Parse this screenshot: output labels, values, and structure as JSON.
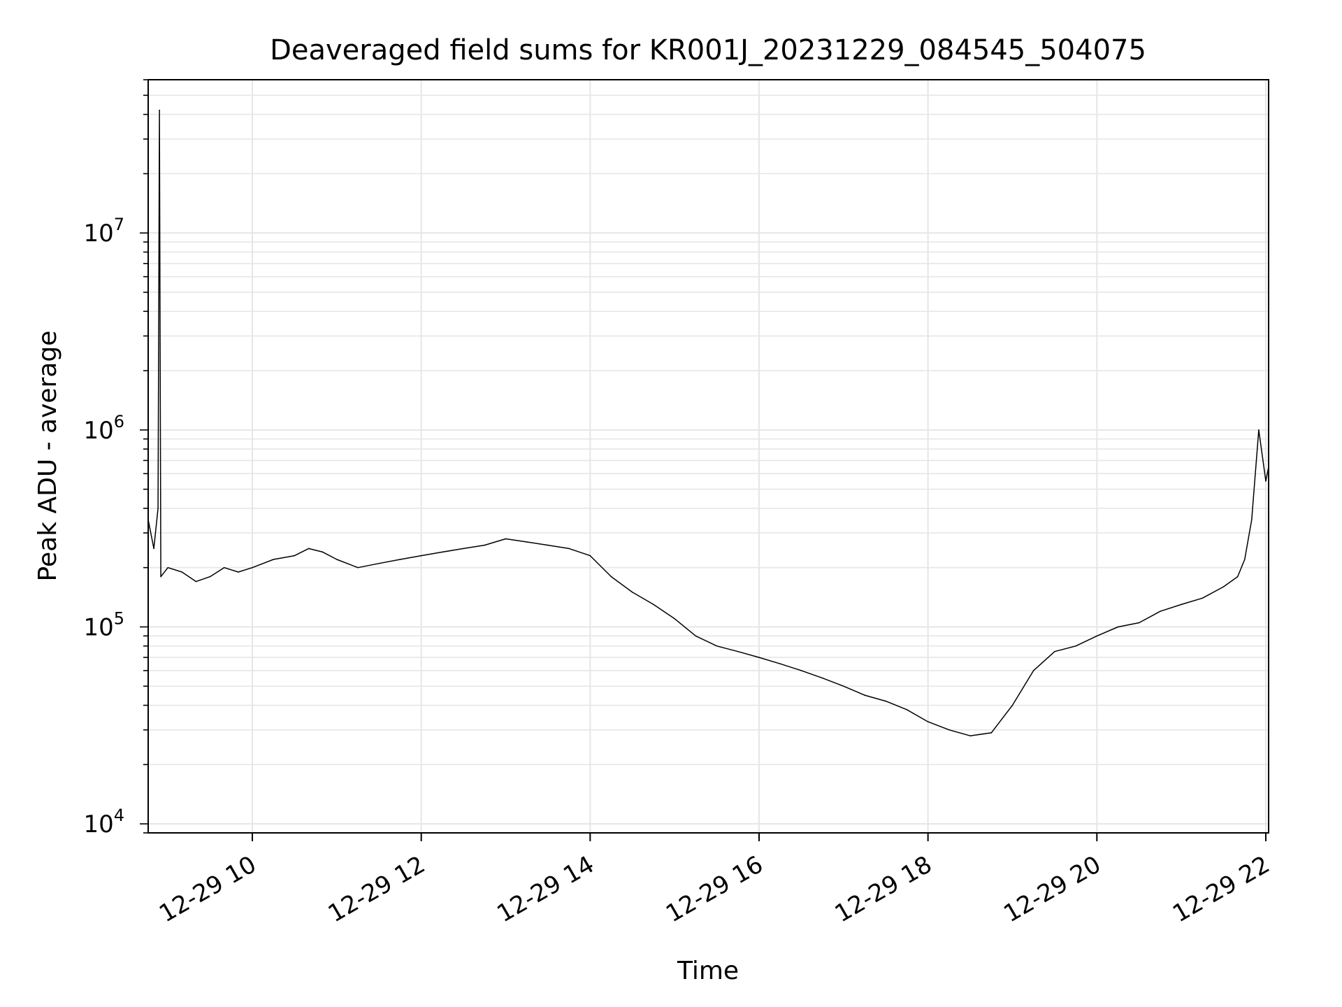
{
  "chart_data": {
    "type": "line",
    "title": "Deaveraged field sums for KR001J_20231229_084545_504075",
    "xlabel": "Time",
    "ylabel": "Peak ADU - average",
    "y_scale": "log",
    "ylim": [
      9000,
      60000000
    ],
    "xlim": [
      "2023-12-29 08:46",
      "2023-12-29 22:02"
    ],
    "grid": true,
    "legend": "none",
    "line_color": "#000000",
    "x_ticks": [
      "12-29 10",
      "12-29 12",
      "12-29 14",
      "12-29 16",
      "12-29 18",
      "12-29 20",
      "12-29 22"
    ],
    "x_tick_values": [
      "2023-12-29 10:00",
      "2023-12-29 12:00",
      "2023-12-29 14:00",
      "2023-12-29 16:00",
      "2023-12-29 18:00",
      "2023-12-29 20:00",
      "2023-12-29 22:00"
    ],
    "y_ticks": [
      {
        "value": 10000,
        "base": "10",
        "exp": "4"
      },
      {
        "value": 100000,
        "base": "10",
        "exp": "5"
      },
      {
        "value": 1000000,
        "base": "10",
        "exp": "6"
      },
      {
        "value": 10000000,
        "base": "10",
        "exp": "7"
      }
    ],
    "series": [
      {
        "x": [
          "2023-12-29 08:46",
          "2023-12-29 08:50",
          "2023-12-29 08:53",
          "2023-12-29 08:54",
          "2023-12-29 08:55",
          "2023-12-29 09:00",
          "2023-12-29 09:10",
          "2023-12-29 09:20",
          "2023-12-29 09:30",
          "2023-12-29 09:40",
          "2023-12-29 09:50",
          "2023-12-29 10:00",
          "2023-12-29 10:15",
          "2023-12-29 10:30",
          "2023-12-29 10:40",
          "2023-12-29 10:50",
          "2023-12-29 11:00",
          "2023-12-29 11:15",
          "2023-12-29 11:30",
          "2023-12-29 11:45",
          "2023-12-29 12:00",
          "2023-12-29 12:15",
          "2023-12-29 12:30",
          "2023-12-29 12:45",
          "2023-12-29 13:00",
          "2023-12-29 13:15",
          "2023-12-29 13:30",
          "2023-12-29 13:45",
          "2023-12-29 14:00",
          "2023-12-29 14:15",
          "2023-12-29 14:30",
          "2023-12-29 14:45",
          "2023-12-29 15:00",
          "2023-12-29 15:15",
          "2023-12-29 15:30",
          "2023-12-29 15:45",
          "2023-12-29 16:00",
          "2023-12-29 16:15",
          "2023-12-29 16:30",
          "2023-12-29 16:45",
          "2023-12-29 17:00",
          "2023-12-29 17:15",
          "2023-12-29 17:30",
          "2023-12-29 17:45",
          "2023-12-29 18:00",
          "2023-12-29 18:15",
          "2023-12-29 18:30",
          "2023-12-29 18:45",
          "2023-12-29 19:00",
          "2023-12-29 19:15",
          "2023-12-29 19:30",
          "2023-12-29 19:45",
          "2023-12-29 20:00",
          "2023-12-29 20:15",
          "2023-12-29 20:30",
          "2023-12-29 20:45",
          "2023-12-29 21:00",
          "2023-12-29 21:15",
          "2023-12-29 21:30",
          "2023-12-29 21:40",
          "2023-12-29 21:45",
          "2023-12-29 21:50",
          "2023-12-29 21:55",
          "2023-12-29 22:00",
          "2023-12-29 22:02"
        ],
        "values": [
          350000,
          250000,
          400000,
          42000000,
          180000,
          200000,
          190000,
          170000,
          180000,
          200000,
          190000,
          200000,
          220000,
          230000,
          250000,
          240000,
          220000,
          200000,
          210000,
          220000,
          230000,
          240000,
          250000,
          260000,
          280000,
          270000,
          260000,
          250000,
          230000,
          180000,
          150000,
          130000,
          110000,
          90000,
          80000,
          75000,
          70000,
          65000,
          60000,
          55000,
          50000,
          45000,
          42000,
          38000,
          33000,
          30000,
          28000,
          29000,
          40000,
          60000,
          75000,
          80000,
          90000,
          100000,
          105000,
          120000,
          130000,
          140000,
          160000,
          180000,
          220000,
          350000,
          1000000,
          550000,
          650000
        ]
      }
    ]
  }
}
